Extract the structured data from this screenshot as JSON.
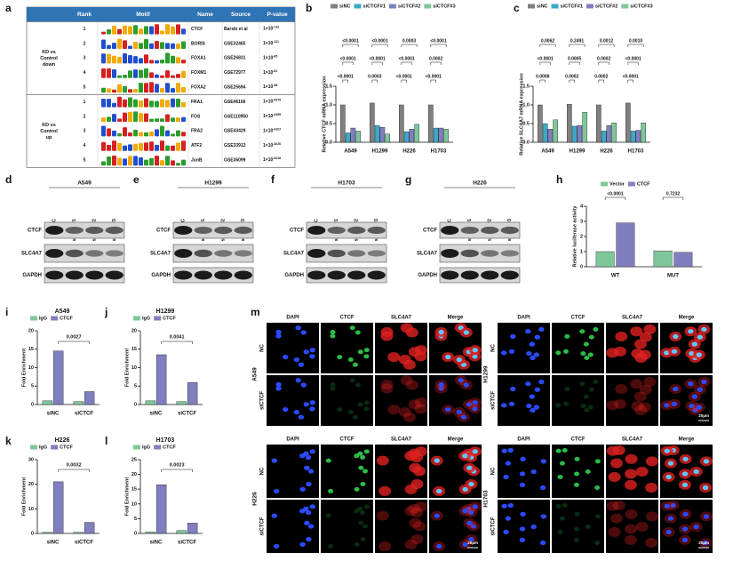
{
  "panel_labels": [
    "a",
    "b",
    "c",
    "d",
    "e",
    "f",
    "g",
    "h",
    "i",
    "j",
    "k",
    "l",
    "m"
  ],
  "table": {
    "header": [
      "Rank",
      "Motif",
      "Name",
      "Source",
      "P-value"
    ],
    "groups": [
      {
        "label": [
          "KD vs",
          "Control",
          "down"
        ],
        "rows": [
          {
            "rank": 1,
            "name": "CTCF",
            "source": "Barski et al",
            "p_base": "1×10",
            "p_exp": "-132"
          },
          {
            "rank": 2,
            "name": "BORIS",
            "source": "GSE32465",
            "p_base": "1×10",
            "p_exp": "-111"
          },
          {
            "rank": 3,
            "name": "FOXA1",
            "source": "GSE26831",
            "p_base": "1×10",
            "p_exp": "-65"
          },
          {
            "rank": 4,
            "name": "FOXM1",
            "source": "GSE72977",
            "p_base": "1×10",
            "p_exp": "-61"
          },
          {
            "rank": 5,
            "name": "FOXA2",
            "source": "GSE25694",
            "p_base": "1×10",
            "p_exp": "-58"
          }
        ]
      },
      {
        "label": [
          "KD vs",
          "Control",
          "up"
        ],
        "rows": [
          {
            "rank": 1,
            "name": "FRA1",
            "source": "GSE46166",
            "p_base": "1×10",
            "p_exp": "-4379"
          },
          {
            "rank": 2,
            "name": "FOS",
            "source": "GSE110950",
            "p_base": "1×10",
            "p_exp": "-4359"
          },
          {
            "rank": 3,
            "name": "FRA2",
            "source": "GSE43429",
            "p_base": "1×10",
            "p_exp": "-4107"
          },
          {
            "rank": 4,
            "name": "ATF2",
            "source": "GSE33912",
            "p_base": "1×10",
            "p_exp": "-4020"
          },
          {
            "rank": 5,
            "name": "JunB",
            "source": "GSE36099",
            "p_base": "1×10",
            "p_exp": "-4016"
          }
        ]
      }
    ]
  },
  "chart_data": [
    {
      "type": "bar",
      "ylabel": "Relative CTCF mRNA expression",
      "categories": [
        "A549",
        "H1299",
        "H226",
        "H1703"
      ],
      "series": [
        {
          "name": "siNC",
          "color": "#808080",
          "values": [
            1.0,
            1.05,
            1.0,
            1.0
          ]
        },
        {
          "name": "siCTCF#1",
          "color": "#3ea8c8",
          "values": [
            0.25,
            0.45,
            0.28,
            0.38
          ]
        },
        {
          "name": "siCTCF#2",
          "color": "#7f7fbf",
          "values": [
            0.38,
            0.4,
            0.35,
            0.38
          ]
        },
        {
          "name": "siCTCF#3",
          "color": "#7fc79a",
          "values": [
            0.3,
            0.22,
            0.48,
            0.35
          ]
        }
      ],
      "ylim": [
        0,
        1.5
      ],
      "yticks": [
        {
          "value": 0,
          "label": "0.0"
        },
        0.5,
        {
          "value": 1,
          "label": "1.0"
        },
        1.5
      ],
      "annotations": [
        [
          "<0.0001",
          "<0.0001",
          "<0.0001"
        ],
        [
          "<0.0001",
          "<0.0001",
          "0.0003"
        ],
        [
          "0.0003",
          "<0.0001",
          "<0.0001"
        ],
        [
          "<0.0001",
          "0.0002",
          "<0.0001"
        ]
      ]
    },
    {
      "type": "bar",
      "ylabel": "Relative SLC4A7 mRNA expression",
      "categories": [
        "A549",
        "H1299",
        "H226",
        "H1703"
      ],
      "series": [
        {
          "name": "siNC",
          "color": "#808080",
          "values": [
            1.0,
            1.02,
            1.0,
            1.05
          ]
        },
        {
          "name": "siCTCF#1",
          "color": "#3ea8c8",
          "values": [
            0.5,
            0.43,
            0.3,
            0.3
          ]
        },
        {
          "name": "siCTCF#2",
          "color": "#7f7fbf",
          "values": [
            0.35,
            0.45,
            0.45,
            0.32
          ]
        },
        {
          "name": "siCTCF#3",
          "color": "#7fc79a",
          "values": [
            0.6,
            0.8,
            0.52,
            0.52
          ]
        }
      ],
      "ylim": [
        0,
        1.5
      ],
      "yticks": [
        {
          "value": 0,
          "label": "0.0"
        },
        0.5,
        {
          "value": 1,
          "label": "1.0"
        },
        1.5
      ],
      "annotations": [
        [
          "0.0062",
          "<0.0001",
          "0.0008"
        ],
        [
          "0.2491",
          "0.0005",
          "0.0002"
        ],
        [
          "0.0012",
          "0.0002",
          "0.0002"
        ],
        [
          "0.0010",
          "<0.0001",
          "<0.0001"
        ]
      ]
    },
    {
      "type": "bar",
      "ylabel": "Relative luciferase activity",
      "categories": [
        "WT",
        "MUT"
      ],
      "series": [
        {
          "name": "Vector",
          "color": "#7fc79a",
          "values": [
            1.0,
            1.05
          ]
        },
        {
          "name": "CTCF",
          "color": "#7f7fbf",
          "values": [
            2.9,
            0.95
          ]
        }
      ],
      "ylim": [
        0,
        4
      ],
      "yticks": [
        0,
        1,
        2,
        3,
        4
      ],
      "annotations": [
        [
          "<0.0001"
        ],
        [
          "0.7232"
        ]
      ]
    },
    {
      "type": "bar",
      "title": "A549",
      "ylabel": "Fold Enrichment",
      "categories": [
        "siNC",
        "siCTCF"
      ],
      "series": [
        {
          "name": "IgG",
          "color": "#7fc79a",
          "values": [
            1,
            0.8
          ]
        },
        {
          "name": "CTCF",
          "color": "#7f7fbf",
          "values": [
            14.5,
            3.5
          ]
        }
      ],
      "ylim": [
        0,
        20
      ],
      "yticks": [
        0,
        5,
        10,
        15,
        20
      ],
      "annotation": "0.0027"
    },
    {
      "type": "bar",
      "title": "H1299",
      "ylabel": "Fold Enrichment",
      "categories": [
        "siNC",
        "siCTCF"
      ],
      "series": [
        {
          "name": "IgG",
          "color": "#7fc79a",
          "values": [
            1,
            0.8
          ]
        },
        {
          "name": "CTCF",
          "color": "#7f7fbf",
          "values": [
            13.5,
            6
          ]
        }
      ],
      "ylim": [
        0,
        20
      ],
      "yticks": [
        0,
        5,
        10,
        15,
        20
      ],
      "annotation": "0.0041"
    },
    {
      "type": "bar",
      "title": "H226",
      "ylabel": "Fold Enrichment",
      "categories": [
        "siNC",
        "siCTCF"
      ],
      "series": [
        {
          "name": "IgG",
          "color": "#7fc79a",
          "values": [
            0.5,
            0.5
          ]
        },
        {
          "name": "CTCF",
          "color": "#7f7fbf",
          "values": [
            21,
            4.5
          ]
        }
      ],
      "ylim": [
        0,
        30
      ],
      "yticks": [
        0,
        10,
        20,
        30
      ],
      "annotation": "0.0032"
    },
    {
      "type": "bar",
      "title": "H1703",
      "ylabel": "Fold Enrichment",
      "categories": [
        "siNC",
        "siCTCF"
      ],
      "series": [
        {
          "name": "IgG",
          "color": "#7fc79a",
          "values": [
            0.5,
            1
          ]
        },
        {
          "name": "CTCF",
          "color": "#7f7fbf",
          "values": [
            16.5,
            3.5
          ]
        }
      ],
      "ylim": [
        0,
        25
      ],
      "yticks": [
        0,
        5,
        10,
        15,
        20,
        25
      ],
      "annotation": "0.0023"
    }
  ],
  "blots": [
    {
      "title": "A549",
      "lanes": [
        "siNC",
        "siCTCF#1",
        "siCTCF#2",
        "siCTCF#3"
      ],
      "rows": [
        "CTCF",
        "SLC4A7",
        "GAPDH"
      ]
    },
    {
      "title": "H1299",
      "lanes": [
        "siNC",
        "siCTCF#1",
        "siCTCF#2",
        "siCTCF#3"
      ],
      "rows": [
        "CTCF",
        "SLC4A7",
        "GAPDH"
      ]
    },
    {
      "title": "H1703",
      "lanes": [
        "siNC",
        "siCTCF#1",
        "siCTCF#2",
        "siCTCF#3"
      ],
      "rows": [
        "CTCF",
        "SLC4A7",
        "GAPDH"
      ]
    },
    {
      "title": "H226",
      "lanes": [
        "siNC",
        "siCTCF#1",
        "siCTCF#2",
        "siCTCF#3"
      ],
      "rows": [
        "CTCF",
        "SLC4A7",
        "GAPDH"
      ]
    }
  ],
  "if_panels": [
    {
      "cell_line": "A549",
      "columns": [
        "DAPI",
        "CTCF",
        "SLC4A7",
        "Merge"
      ],
      "rows": [
        "NC",
        "siCTCF"
      ]
    },
    {
      "cell_line": "H1299",
      "columns": [
        "DAPI",
        "CTCF",
        "SLC4A7",
        "Merge"
      ],
      "rows": [
        "NC",
        "siCTCF"
      ],
      "scale": "20μm"
    },
    {
      "cell_line": "H226",
      "columns": [
        "DAPI",
        "CTCF",
        "SLC4A7",
        "Merge"
      ],
      "rows": [
        "NC",
        "siCTCF"
      ],
      "scale": "20μm"
    },
    {
      "cell_line": "H1703",
      "columns": [
        "DAPI",
        "CTCF",
        "SLC4A7",
        "Merge"
      ],
      "rows": [
        "NC",
        "siCTCF"
      ],
      "scale": "20μm"
    }
  ]
}
